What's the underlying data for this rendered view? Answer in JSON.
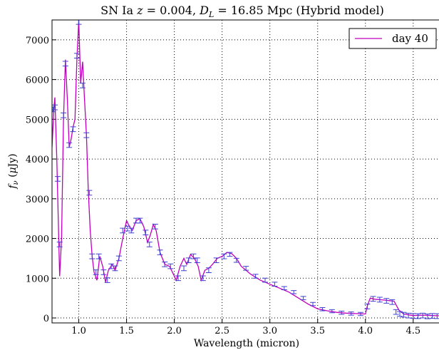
{
  "chart_data": {
    "type": "line",
    "title": [
      "SN Ia ",
      "z",
      " = 0.004, ",
      "D",
      "L",
      " = 16.85 Mpc (Hybrid model)"
    ],
    "xlabel": "Wavelength (micron)",
    "ylabel": [
      "f",
      "ν",
      " (",
      "μ",
      "Jy)"
    ],
    "xlim": [
      0.72,
      4.77
    ],
    "ylim": [
      -125,
      7500
    ],
    "xticks": [
      {
        "value": 1,
        "label": "1.0"
      },
      1.5,
      {
        "value": 2,
        "label": "2.0"
      },
      2.5,
      {
        "value": 3,
        "label": "3.0"
      },
      3.5,
      {
        "value": 4,
        "label": "4.0"
      },
      4.5
    ],
    "yticks": [
      0,
      1000,
      2000,
      3000,
      4000,
      5000,
      6000,
      7000
    ],
    "grid": true,
    "legend": "upper right",
    "series": [
      {
        "name": "day 40",
        "color": "#bf00bf",
        "x": [
          0.72,
          0.74,
          0.75,
          0.77,
          0.79,
          0.8,
          0.82,
          0.84,
          0.86,
          0.88,
          0.9,
          0.92,
          0.94,
          0.96,
          0.98,
          1.0,
          1.02,
          1.04,
          1.06,
          1.08,
          1.1,
          1.12,
          1.14,
          1.16,
          1.19,
          1.22,
          1.25,
          1.28,
          1.31,
          1.35,
          1.38,
          1.42,
          1.46,
          1.5,
          1.53,
          1.56,
          1.6,
          1.64,
          1.68,
          1.72,
          1.75,
          1.78,
          1.81,
          1.85,
          1.9,
          1.95,
          1.99,
          2.02,
          2.06,
          2.1,
          2.13,
          2.17,
          2.21,
          2.25,
          2.28,
          2.32,
          2.36,
          2.4,
          2.45,
          2.5,
          2.55,
          2.6,
          2.65,
          2.7,
          2.8,
          2.9,
          3.0,
          3.1,
          3.2,
          3.3,
          3.4,
          3.5,
          3.6,
          3.7,
          3.8,
          3.9,
          4.0,
          4.02,
          4.05,
          4.1,
          4.2,
          4.3,
          4.35,
          4.4,
          4.5,
          4.6,
          4.7,
          4.77
        ],
        "values": [
          4300,
          5300,
          5550,
          4000,
          2000,
          1050,
          2000,
          5000,
          6500,
          5500,
          4300,
          4500,
          4800,
          5000,
          6500,
          7500,
          5900,
          6450,
          5500,
          4600,
          3200,
          2200,
          1550,
          1150,
          950,
          1550,
          1300,
          900,
          1200,
          1350,
          1200,
          1500,
          2000,
          2450,
          2300,
          2200,
          2450,
          2500,
          2300,
          1900,
          2100,
          2350,
          2200,
          1650,
          1350,
          1300,
          1100,
          950,
          1300,
          1500,
          1350,
          1600,
          1500,
          1300,
          950,
          1200,
          1250,
          1350,
          1500,
          1550,
          1650,
          1620,
          1500,
          1300,
          1100,
          950,
          850,
          750,
          650,
          500,
          350,
          230,
          180,
          140,
          120,
          110,
          100,
          300,
          500,
          470,
          450,
          420,
          200,
          100,
          60,
          70,
          60,
          55
        ]
      },
      {
        "color": "#4040d0",
        "x": [
          0.73,
          0.75,
          0.78,
          0.8,
          0.84,
          0.86,
          0.9,
          0.94,
          0.98,
          1.0,
          1.04,
          1.08,
          1.11,
          1.14,
          1.18,
          1.21,
          1.26,
          1.3,
          1.34,
          1.38,
          1.42,
          1.46,
          1.51,
          1.55,
          1.6,
          1.64,
          1.7,
          1.74,
          1.8,
          1.85,
          1.9,
          1.96,
          2.04,
          2.1,
          2.15,
          2.2,
          2.24,
          2.3,
          2.36,
          2.44,
          2.52,
          2.58,
          2.65,
          2.75,
          2.85,
          2.95,
          3.05,
          3.15,
          3.25,
          3.35,
          3.45,
          3.55,
          3.65,
          3.75,
          3.85,
          3.95,
          4.02,
          4.08,
          4.15,
          4.22,
          4.28,
          4.32,
          4.36,
          4.4,
          4.45,
          4.5,
          4.55,
          4.6,
          4.65,
          4.7,
          4.75
        ],
        "values": [
          5250,
          5300,
          3500,
          1850,
          5100,
          6400,
          4350,
          4750,
          6600,
          7450,
          5850,
          4600,
          3150,
          1550,
          1150,
          1550,
          1150,
          950,
          1300,
          1250,
          1500,
          2200,
          2250,
          2200,
          2450,
          2450,
          2150,
          1850,
          2300,
          1650,
          1350,
          1300,
          1000,
          1250,
          1450,
          1550,
          1450,
          1000,
          1200,
          1450,
          1550,
          1600,
          1450,
          1250,
          1050,
          950,
          850,
          750,
          650,
          500,
          350,
          220,
          170,
          130,
          110,
          100,
          290,
          480,
          460,
          430,
          400,
          150,
          100,
          80,
          60,
          50,
          45,
          60,
          40,
          50,
          45
        ],
        "errors": [
          60,
          60,
          60,
          60,
          60,
          60,
          60,
          60,
          60,
          60,
          60,
          60,
          60,
          60,
          60,
          60,
          60,
          60,
          60,
          60,
          60,
          60,
          60,
          60,
          60,
          60,
          60,
          60,
          60,
          60,
          60,
          60,
          60,
          60,
          60,
          60,
          60,
          60,
          60,
          60,
          60,
          50,
          50,
          50,
          50,
          50,
          50,
          40,
          40,
          40,
          40,
          40,
          40,
          40,
          40,
          40,
          60,
          60,
          60,
          60,
          60,
          60,
          60,
          60,
          60,
          60,
          60,
          60,
          60,
          60,
          60
        ]
      }
    ]
  }
}
